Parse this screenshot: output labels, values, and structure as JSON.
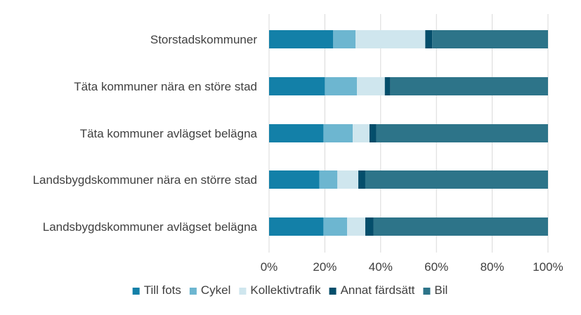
{
  "chart_data": {
    "type": "bar",
    "orientation": "horizontal",
    "stacked": "percent",
    "categories": [
      "Storstadskommuner",
      "Täta kommuner nära en störe stad",
      "Täta kommuner avlägset belägna",
      "Landsbygdskommuner nära en större stad",
      "Landsbygdskommuner avlägset belägna"
    ],
    "series": [
      {
        "name": "Till fots",
        "color": "#1380a8",
        "values": [
          23,
          20,
          19.5,
          18,
          19.5
        ]
      },
      {
        "name": "Cykel",
        "color": "#6db6d0",
        "values": [
          8,
          11.5,
          10.5,
          6.5,
          8.5
        ]
      },
      {
        "name": "Kollektivtrafik",
        "color": "#cfe6ee",
        "values": [
          25,
          10,
          6,
          7.5,
          6.5
        ]
      },
      {
        "name": "Annat färdsätt",
        "color": "#044e6b",
        "values": [
          2.5,
          2,
          2.5,
          2.5,
          3
        ]
      },
      {
        "name": "Bil",
        "color": "#2d7489",
        "values": [
          41.5,
          56.5,
          61.5,
          65.5,
          62.5
        ]
      }
    ],
    "xlim": [
      0,
      100
    ],
    "xticks": [
      "0%",
      "20%",
      "40%",
      "60%",
      "80%",
      "100%"
    ],
    "grid": true,
    "legend_position": "bottom"
  }
}
